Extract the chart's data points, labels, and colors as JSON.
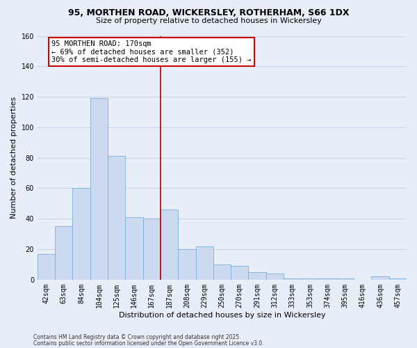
{
  "title_line1": "95, MORTHEN ROAD, WICKERSLEY, ROTHERHAM, S66 1DX",
  "title_line2": "Size of property relative to detached houses in Wickersley",
  "xlabel": "Distribution of detached houses by size in Wickersley",
  "ylabel": "Number of detached properties",
  "bin_labels": [
    "42sqm",
    "63sqm",
    "84sqm",
    "104sqm",
    "125sqm",
    "146sqm",
    "167sqm",
    "187sqm",
    "208sqm",
    "229sqm",
    "250sqm",
    "270sqm",
    "291sqm",
    "312sqm",
    "333sqm",
    "353sqm",
    "374sqm",
    "395sqm",
    "416sqm",
    "436sqm",
    "457sqm"
  ],
  "bar_values": [
    17,
    35,
    60,
    119,
    81,
    41,
    40,
    46,
    20,
    22,
    10,
    9,
    5,
    4,
    1,
    1,
    1,
    1,
    0,
    2,
    1
  ],
  "bar_color": "#ccd9ee",
  "bar_edge_color": "#7bafd4",
  "vline_x": 6.5,
  "vline_color": "#aa0000",
  "ylim": [
    0,
    160
  ],
  "yticks": [
    0,
    20,
    40,
    60,
    80,
    100,
    120,
    140,
    160
  ],
  "annotation_title": "95 MORTHEN ROAD: 170sqm",
  "annotation_line1": "← 69% of detached houses are smaller (352)",
  "annotation_line2": "30% of semi-detached houses are larger (155) →",
  "annotation_box_facecolor": "#ffffff",
  "annotation_box_edgecolor": "#cc0000",
  "footer_line1": "Contains HM Land Registry data © Crown copyright and database right 2025.",
  "footer_line2": "Contains public sector information licensed under the Open Government Licence v3.0.",
  "background_color": "#e8eef8",
  "grid_color": "#c8d4e8",
  "title_fontsize": 9,
  "subtitle_fontsize": 8,
  "ylabel_fontsize": 8,
  "xlabel_fontsize": 8,
  "tick_fontsize": 7,
  "ann_fontsize": 7.5,
  "footer_fontsize": 5.5
}
